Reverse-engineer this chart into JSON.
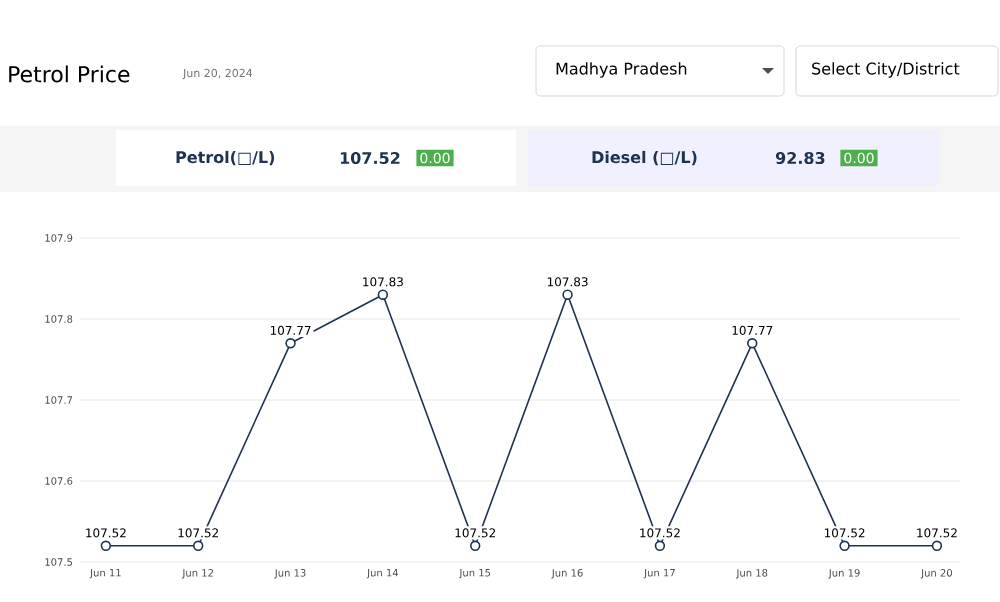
{
  "chart_data": {
    "type": "line",
    "title": "Petrol Price",
    "subtitle": "Jun 20, 2024",
    "categories": [
      "Jun 11",
      "Jun 12",
      "Jun 13",
      "Jun 14",
      "Jun 15",
      "Jun 16",
      "Jun 17",
      "Jun 18",
      "Jun 19",
      "Jun 20"
    ],
    "values": [
      107.52,
      107.52,
      107.77,
      107.83,
      107.52,
      107.83,
      107.52,
      107.77,
      107.52,
      107.52
    ],
    "color": "#1e3350",
    "marker": "circle",
    "data_labels": true,
    "grid": "y",
    "ylim": [
      107.5,
      107.9
    ],
    "yticks": [
      107.5,
      107.6,
      107.7,
      107.8,
      107.9
    ],
    "annotations": [
      "Madhya Pradesh",
      "Select City/District",
      "Petrol(□/L)",
      "107.52",
      "0.00",
      "Diesel (□/L)",
      "92.83",
      "0.00"
    ]
  }
}
